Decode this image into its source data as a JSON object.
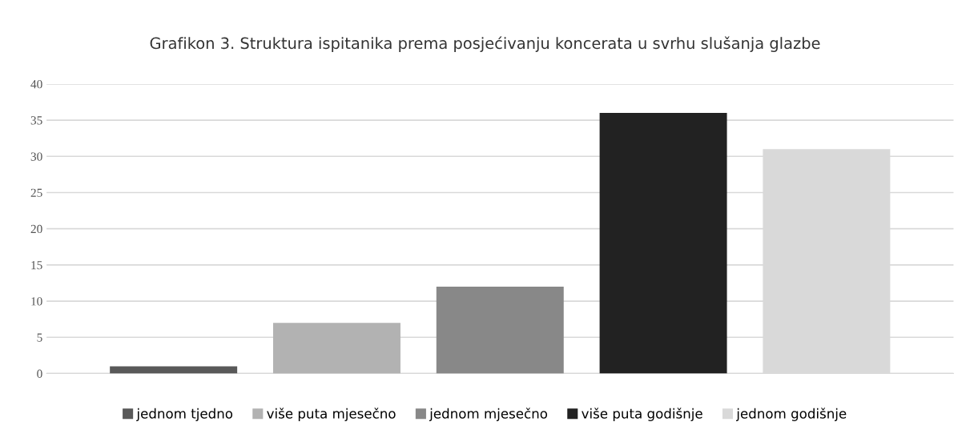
{
  "chart_data": {
    "type": "bar",
    "title": "Grafikon 3. Struktura ispitanika prema posjećivanju koncerata u svrhu slušanja glazbe",
    "categories": [
      null
    ],
    "series": [
      {
        "name": "jednom tjedno",
        "color": "#595959",
        "values": [
          1
        ]
      },
      {
        "name": "više puta mjesečno",
        "color": "#b2b2b2",
        "values": [
          7
        ]
      },
      {
        "name": "jednom mjesečno",
        "color": "#888888",
        "values": [
          12
        ]
      },
      {
        "name": "više puta godišnje",
        "color": "#222222",
        "values": [
          36
        ]
      },
      {
        "name": "jednom godišnje",
        "color": "#d9d9d9",
        "values": [
          31
        ]
      }
    ],
    "ylim": [
      0,
      40
    ],
    "yticks": [
      0,
      5,
      10,
      15,
      20,
      25,
      30,
      35,
      40
    ],
    "grid": "y",
    "legend": "bottom",
    "tick_labels": "y"
  }
}
